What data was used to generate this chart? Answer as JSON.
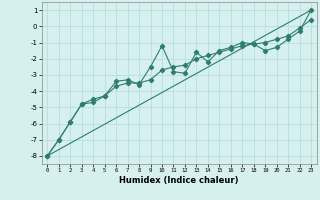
{
  "xlabel": "Humidex (Indice chaleur)",
  "ylabel": "",
  "bg_color": "#d6f0f0",
  "grid_color": "#b8dede",
  "line_color": "#2e7d6e",
  "xlim": [
    -0.5,
    23.5
  ],
  "ylim": [
    -8.5,
    1.5
  ],
  "yticks": [
    1,
    0,
    -1,
    -2,
    -3,
    -4,
    -5,
    -6,
    -7,
    -8
  ],
  "xticks": [
    0,
    1,
    2,
    3,
    4,
    5,
    6,
    7,
    8,
    9,
    10,
    11,
    12,
    13,
    14,
    15,
    16,
    17,
    18,
    19,
    20,
    21,
    22,
    23
  ],
  "line1_x": [
    0,
    1,
    2,
    3,
    4,
    5,
    6,
    7,
    8,
    9,
    10,
    11,
    12,
    13,
    14,
    15,
    16,
    17,
    18,
    19,
    20,
    21,
    22,
    23
  ],
  "line1_y": [
    -8.0,
    -7.0,
    -5.9,
    -4.8,
    -4.5,
    -4.3,
    -3.7,
    -3.5,
    -3.5,
    -3.3,
    -2.7,
    -2.5,
    -2.4,
    -2.0,
    -1.8,
    -1.6,
    -1.4,
    -1.2,
    -1.1,
    -1.0,
    -0.8,
    -0.6,
    -0.1,
    0.4
  ],
  "line2_x": [
    0,
    1,
    2,
    3,
    4,
    5,
    6,
    7,
    8,
    9,
    10,
    11,
    12,
    13,
    14,
    15,
    16,
    17,
    18,
    19,
    20,
    21,
    22,
    23
  ],
  "line2_y": [
    -8.0,
    -7.0,
    -5.9,
    -4.8,
    -4.7,
    -4.3,
    -3.4,
    -3.3,
    -3.6,
    -2.5,
    -1.2,
    -2.8,
    -2.9,
    -1.6,
    -2.2,
    -1.5,
    -1.3,
    -1.0,
    -1.1,
    -1.5,
    -1.3,
    -0.8,
    -0.3,
    1.0
  ],
  "line3_x": [
    0,
    23
  ],
  "line3_y": [
    -8.0,
    1.0
  ]
}
